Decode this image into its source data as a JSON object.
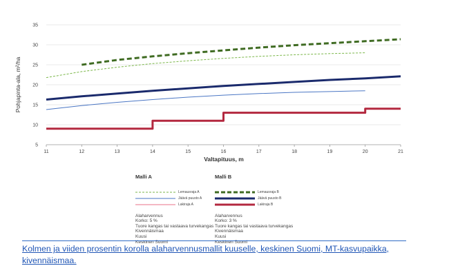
{
  "chart_data": {
    "type": "line",
    "xlabel": "Valtapituus, m",
    "ylabel": "Pohjapinta-ala, m²/ha",
    "xlim": [
      11,
      21
    ],
    "ylim": [
      5,
      35
    ],
    "xticks": [
      11,
      12,
      13,
      14,
      15,
      16,
      17,
      18,
      19,
      20,
      21
    ],
    "yticks": [
      5,
      10,
      15,
      20,
      25,
      30,
      35
    ],
    "grid": true,
    "series": [
      {
        "name": "Lemausraja A",
        "color": "#7ab648",
        "style": "dashed-thin",
        "x": [
          11,
          12,
          13,
          14,
          15,
          16,
          17,
          18,
          19,
          20
        ],
        "y": [
          21.8,
          23.3,
          24.4,
          25.3,
          26.0,
          26.6,
          27.1,
          27.5,
          27.8,
          28.0
        ]
      },
      {
        "name": "Jäävä puusto A",
        "color": "#4a76c4",
        "style": "solid-thin",
        "x": [
          11,
          12,
          13,
          14,
          15,
          16,
          17,
          18,
          19,
          20
        ],
        "y": [
          13.8,
          14.8,
          15.6,
          16.3,
          16.9,
          17.4,
          17.8,
          18.1,
          18.3,
          18.5
        ]
      },
      {
        "name": "Lakiraja A",
        "color": "#e87088",
        "style": "step-thin",
        "x": [
          11,
          14,
          14,
          16,
          16,
          20,
          20,
          21
        ],
        "y": [
          9,
          9,
          11,
          11,
          13,
          13,
          14,
          14
        ]
      },
      {
        "name": "Lemausraja B",
        "color": "#3f6b22",
        "style": "dashed-thick",
        "x": [
          12,
          13,
          14,
          15,
          16,
          17,
          18,
          19,
          20,
          21
        ],
        "y": [
          25.0,
          26.2,
          27.1,
          27.9,
          28.6,
          29.3,
          29.9,
          30.4,
          30.9,
          31.4
        ]
      },
      {
        "name": "Jäävä puusto B",
        "color": "#1a2a6c",
        "style": "solid-thick",
        "x": [
          11,
          12,
          13,
          14,
          15,
          16,
          17,
          18,
          19,
          20,
          21
        ],
        "y": [
          16.3,
          17.1,
          17.8,
          18.5,
          19.1,
          19.7,
          20.2,
          20.7,
          21.2,
          21.6,
          22.1
        ]
      },
      {
        "name": "Lakiraja B",
        "color": "#b3283f",
        "style": "step-thick",
        "x": [
          11,
          14,
          14,
          16,
          16,
          20,
          20,
          21
        ],
        "y": [
          9,
          9,
          11,
          11,
          13,
          13,
          14,
          14
        ]
      }
    ]
  },
  "legend": {
    "a": {
      "title": "Malli A",
      "items": [
        "Lemausraja A",
        "Jäävä puusto A",
        "Lakiraja A"
      ],
      "notes": [
        "Alaharvennus",
        "Korko: 5 %",
        "Tuore kangas tai vastaava turvekangas",
        "Kivennäismaa",
        "Kuusi",
        "Keskinen Suomi"
      ]
    },
    "b": {
      "title": "Malli B",
      "items": [
        "Lemausraja B",
        "Jäävä puusto B",
        "Lakiraja B"
      ],
      "notes": [
        "Alaharvennus",
        "Korko: 3 %",
        "Tuore kangas tai vastaava turvekangas",
        "Kivennäismaa",
        "Kuusi",
        "Keskinen Suomi"
      ]
    }
  },
  "caption": "Kolmen ja viiden prosentin korolla alaharvennusmallit kuuselle, keskinen Suomi, MT-kasvupaikka, kivennäismaa."
}
